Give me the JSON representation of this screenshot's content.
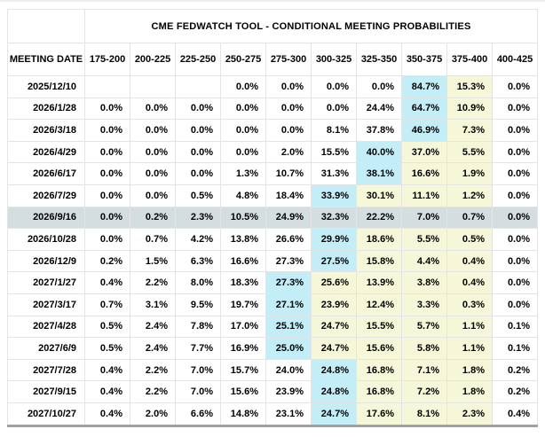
{
  "header": {
    "title": "CME FEDWATCH TOOL - CONDITIONAL MEETING PROBABILITIES"
  },
  "colors": {
    "max_probability_highlight": "#c3edf7",
    "path_highlight": "#f6f6d8",
    "selected_row": "#d4dee1",
    "grid_border": "#e4e4e4",
    "table_bottom_border": "#a1a1a1"
  },
  "table": {
    "date_column_header": "MEETING DATE",
    "rate_range_headers": [
      "175-200",
      "200-225",
      "225-250",
      "250-275",
      "275-300",
      "300-325",
      "325-350",
      "350-375",
      "375-400",
      "400-425"
    ],
    "rows": [
      {
        "date": "2025/12/10",
        "selected": false,
        "values": [
          "",
          "",
          "",
          "0.0%",
          "0.0%",
          "0.0%",
          "0.0%",
          "84.7%",
          "15.3%",
          "0.0%"
        ],
        "highlight": [
          "",
          "",
          "",
          "",
          "",
          "",
          "",
          "b",
          "y",
          ""
        ]
      },
      {
        "date": "2026/1/28",
        "selected": false,
        "values": [
          "0.0%",
          "0.0%",
          "0.0%",
          "0.0%",
          "0.0%",
          "0.0%",
          "24.4%",
          "64.7%",
          "10.9%",
          "0.0%"
        ],
        "highlight": [
          "",
          "",
          "",
          "",
          "",
          "",
          "",
          "b",
          "y",
          ""
        ]
      },
      {
        "date": "2026/3/18",
        "selected": false,
        "values": [
          "0.0%",
          "0.0%",
          "0.0%",
          "0.0%",
          "0.0%",
          "8.1%",
          "37.8%",
          "46.9%",
          "7.3%",
          "0.0%"
        ],
        "highlight": [
          "",
          "",
          "",
          "",
          "",
          "",
          "",
          "b",
          "y",
          ""
        ]
      },
      {
        "date": "2026/4/29",
        "selected": false,
        "values": [
          "0.0%",
          "0.0%",
          "0.0%",
          "0.0%",
          "2.0%",
          "15.5%",
          "40.0%",
          "37.0%",
          "5.5%",
          "0.0%"
        ],
        "highlight": [
          "",
          "",
          "",
          "",
          "",
          "",
          "b",
          "y",
          "y",
          ""
        ]
      },
      {
        "date": "2026/6/17",
        "selected": false,
        "values": [
          "0.0%",
          "0.0%",
          "0.0%",
          "1.3%",
          "10.7%",
          "31.3%",
          "38.1%",
          "16.6%",
          "1.9%",
          "0.0%"
        ],
        "highlight": [
          "",
          "",
          "",
          "",
          "",
          "",
          "b",
          "y",
          "y",
          ""
        ]
      },
      {
        "date": "2026/7/29",
        "selected": false,
        "values": [
          "0.0%",
          "0.0%",
          "0.5%",
          "4.8%",
          "18.4%",
          "33.9%",
          "30.1%",
          "11.1%",
          "1.2%",
          "0.0%"
        ],
        "highlight": [
          "",
          "",
          "",
          "",
          "",
          "b",
          "y",
          "y",
          "y",
          ""
        ]
      },
      {
        "date": "2026/9/16",
        "selected": true,
        "values": [
          "0.0%",
          "0.2%",
          "2.3%",
          "10.5%",
          "24.9%",
          "32.3%",
          "22.2%",
          "7.0%",
          "0.7%",
          "0.0%"
        ],
        "highlight": [
          "",
          "",
          "",
          "",
          "",
          "",
          "",
          "",
          "",
          ""
        ]
      },
      {
        "date": "2026/10/28",
        "selected": false,
        "values": [
          "0.0%",
          "0.7%",
          "4.2%",
          "13.8%",
          "26.6%",
          "29.9%",
          "18.6%",
          "5.5%",
          "0.5%",
          "0.0%"
        ],
        "highlight": [
          "",
          "",
          "",
          "",
          "",
          "b",
          "y",
          "y",
          "y",
          ""
        ]
      },
      {
        "date": "2026/12/9",
        "selected": false,
        "values": [
          "0.2%",
          "1.5%",
          "6.3%",
          "16.6%",
          "27.3%",
          "27.5%",
          "15.8%",
          "4.4%",
          "0.4%",
          "0.0%"
        ],
        "highlight": [
          "",
          "",
          "",
          "",
          "",
          "b",
          "y",
          "y",
          "y",
          ""
        ]
      },
      {
        "date": "2027/1/27",
        "selected": false,
        "values": [
          "0.4%",
          "2.2%",
          "8.0%",
          "18.3%",
          "27.3%",
          "25.6%",
          "13.9%",
          "3.8%",
          "0.4%",
          "0.0%"
        ],
        "highlight": [
          "",
          "",
          "",
          "",
          "b",
          "y",
          "y",
          "y",
          "y",
          ""
        ]
      },
      {
        "date": "2027/3/17",
        "selected": false,
        "values": [
          "0.7%",
          "3.1%",
          "9.5%",
          "19.7%",
          "27.1%",
          "23.9%",
          "12.4%",
          "3.3%",
          "0.3%",
          "0.0%"
        ],
        "highlight": [
          "",
          "",
          "",
          "",
          "b",
          "y",
          "y",
          "y",
          "y",
          ""
        ]
      },
      {
        "date": "2027/4/28",
        "selected": false,
        "values": [
          "0.5%",
          "2.4%",
          "7.8%",
          "17.0%",
          "25.1%",
          "24.7%",
          "15.5%",
          "5.7%",
          "1.1%",
          "0.1%"
        ],
        "highlight": [
          "",
          "",
          "",
          "",
          "b",
          "y",
          "y",
          "y",
          "y",
          ""
        ]
      },
      {
        "date": "2027/6/9",
        "selected": false,
        "values": [
          "0.5%",
          "2.4%",
          "7.7%",
          "16.9%",
          "25.0%",
          "24.7%",
          "15.6%",
          "5.8%",
          "1.1%",
          "0.1%"
        ],
        "highlight": [
          "",
          "",
          "",
          "",
          "b",
          "y",
          "y",
          "y",
          "y",
          ""
        ]
      },
      {
        "date": "2027/7/28",
        "selected": false,
        "values": [
          "0.4%",
          "2.2%",
          "7.0%",
          "15.7%",
          "24.0%",
          "24.8%",
          "16.8%",
          "7.1%",
          "1.8%",
          "0.2%"
        ],
        "highlight": [
          "",
          "",
          "",
          "",
          "",
          "b",
          "y",
          "y",
          "y",
          ""
        ]
      },
      {
        "date": "2027/9/15",
        "selected": false,
        "values": [
          "0.4%",
          "2.2%",
          "7.0%",
          "15.6%",
          "23.9%",
          "24.8%",
          "16.8%",
          "7.2%",
          "1.8%",
          "0.2%"
        ],
        "highlight": [
          "",
          "",
          "",
          "",
          "",
          "b",
          "y",
          "y",
          "y",
          ""
        ]
      },
      {
        "date": "2027/10/27",
        "selected": false,
        "values": [
          "0.4%",
          "2.0%",
          "6.6%",
          "14.8%",
          "23.1%",
          "24.7%",
          "17.6%",
          "8.1%",
          "2.3%",
          "0.4%"
        ],
        "highlight": [
          "",
          "",
          "",
          "",
          "",
          "b",
          "y",
          "y",
          "y",
          ""
        ]
      }
    ]
  }
}
